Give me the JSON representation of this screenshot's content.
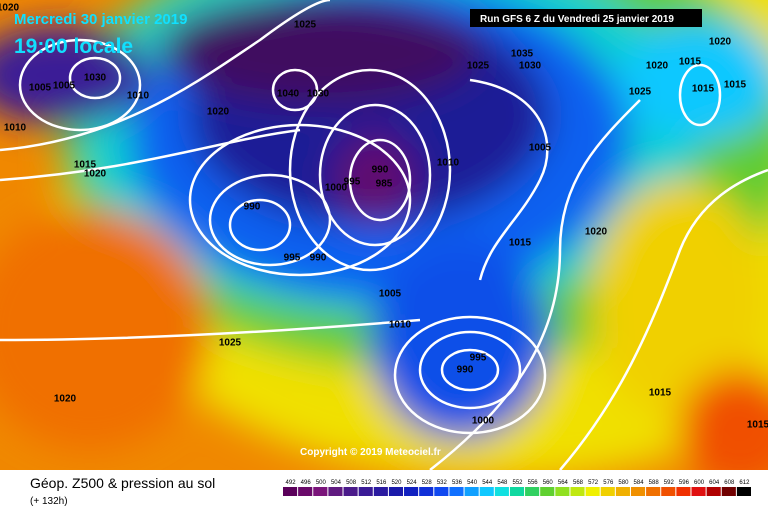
{
  "header": {
    "date": "Mercredi 30 janvier 2019",
    "time": "19:00 locale",
    "run": "Run GFS 6 Z du Vendredi 25 janvier 2019"
  },
  "copyright": "Copyright © 2019 Meteociel.fr",
  "footer": {
    "title": "Géop. Z500 & pression au sol",
    "lead": "(+ 132h)"
  },
  "legend": {
    "levels": [
      492,
      496,
      500,
      504,
      508,
      512,
      516,
      520,
      524,
      528,
      532,
      536,
      540,
      544,
      548,
      552,
      556,
      560,
      564,
      568,
      572,
      576,
      580,
      584,
      588,
      592,
      596,
      600,
      604,
      608,
      612
    ],
    "colors": [
      "#5a005a",
      "#6a0a6a",
      "#7a147a",
      "#601a80",
      "#4a1a8a",
      "#3a1a96",
      "#2a1aa0",
      "#1a1aaa",
      "#1020c0",
      "#1030d8",
      "#1048f0",
      "#1070ff",
      "#10a0ff",
      "#10c8ff",
      "#10e0e0",
      "#10d8a0",
      "#30d060",
      "#60d030",
      "#90e020",
      "#c0e810",
      "#f0f000",
      "#f0d000",
      "#f0b000",
      "#f09000",
      "#f07000",
      "#f05000",
      "#f03000",
      "#e01010",
      "#b00000",
      "#700000",
      "#000000"
    ]
  },
  "isobars": [
    1025,
    1020,
    1005,
    1005,
    1030,
    1010,
    1010,
    1020,
    1040,
    1030,
    1015,
    1020,
    990,
    995,
    990,
    990,
    995,
    985,
    1000,
    1010,
    1035,
    1030,
    1025,
    1005,
    1020,
    1015,
    1015,
    1025,
    1015,
    1020,
    1015,
    1020,
    1005,
    1010,
    1025,
    1020,
    995,
    990,
    1000,
    1015,
    1015
  ]
}
